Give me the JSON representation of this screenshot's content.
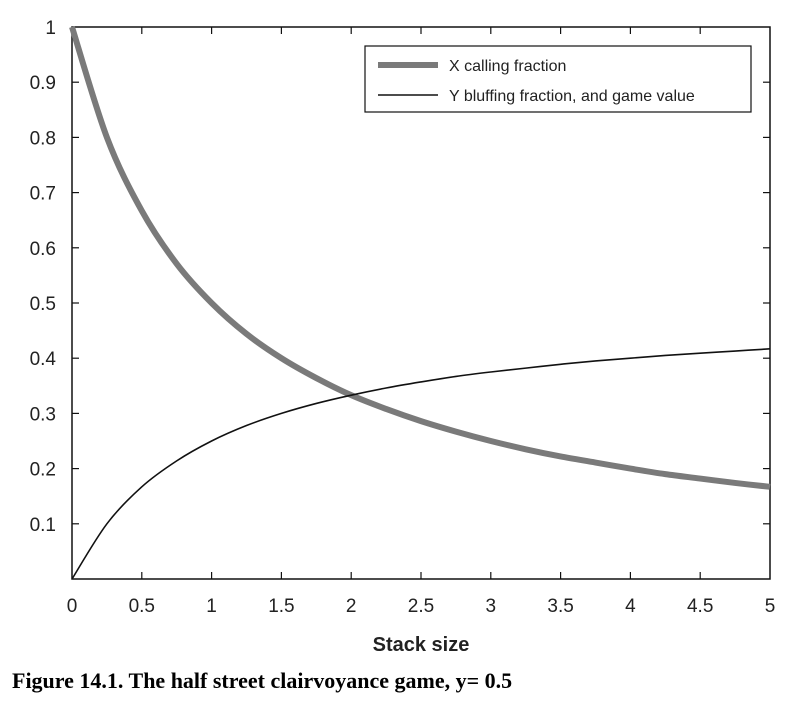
{
  "caption": "Figure 14.1. The half street clairvoyance game, y= 0.5",
  "chart_data": {
    "type": "line",
    "title": "",
    "xlabel": "Stack size",
    "ylabel": "",
    "xlim": [
      0,
      5
    ],
    "ylim": [
      0,
      1
    ],
    "xticks": [
      0,
      0.5,
      1,
      1.5,
      2,
      2.5,
      3,
      3.5,
      4,
      4.5,
      5
    ],
    "xtick_labels": [
      "0",
      "0.5",
      "1",
      "1.5",
      "2",
      "2.5",
      "3",
      "3.5",
      "4",
      "4.5",
      "5"
    ],
    "yticks": [
      0.1,
      0.2,
      0.3,
      0.4,
      0.5,
      0.6,
      0.7,
      0.8,
      0.9,
      1
    ],
    "ytick_labels": [
      "0.1",
      "0.2",
      "0.3",
      "0.4",
      "0.5",
      "0.6",
      "0.7",
      "0.8",
      "0.9",
      "1"
    ],
    "grid": false,
    "legend_position": "top-right",
    "series": [
      {
        "name": "X calling fraction",
        "color": "#7a7a7a",
        "x": [
          0,
          0.25,
          0.5,
          0.75,
          1,
          1.25,
          1.5,
          1.75,
          2,
          2.25,
          2.5,
          2.75,
          3,
          3.25,
          3.5,
          3.75,
          4,
          4.25,
          4.5,
          4.75,
          5
        ],
        "y": [
          1,
          0.8,
          0.667,
          0.571,
          0.5,
          0.444,
          0.4,
          0.364,
          0.333,
          0.308,
          0.286,
          0.267,
          0.25,
          0.235,
          0.222,
          0.211,
          0.2,
          0.19,
          0.182,
          0.174,
          0.167
        ]
      },
      {
        "name": "Y bluffing fraction, and game value",
        "color": "#111111",
        "x": [
          0,
          0.25,
          0.5,
          0.75,
          1,
          1.25,
          1.5,
          1.75,
          2,
          2.25,
          2.5,
          2.75,
          3,
          3.25,
          3.5,
          3.75,
          4,
          4.25,
          4.5,
          4.75,
          5
        ],
        "y": [
          0,
          0.1,
          0.167,
          0.214,
          0.25,
          0.278,
          0.3,
          0.318,
          0.333,
          0.346,
          0.357,
          0.367,
          0.375,
          0.382,
          0.389,
          0.395,
          0.4,
          0.405,
          0.409,
          0.413,
          0.417
        ]
      }
    ]
  }
}
